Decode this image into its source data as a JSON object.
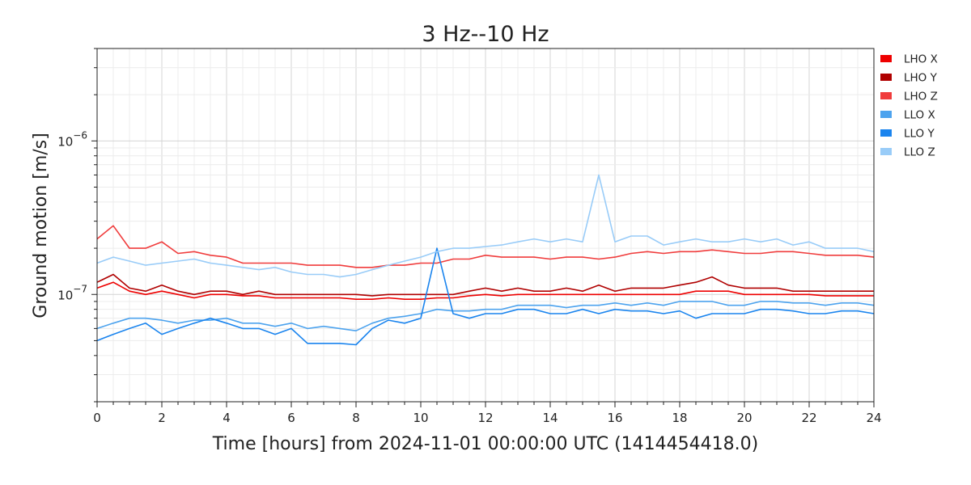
{
  "chart_data": {
    "type": "line",
    "title": "3 Hz--10 Hz",
    "xlabel": "Time [hours] from 2024-11-01 00:00:00 UTC (1414454418.0)",
    "ylabel": "Ground motion [m/s]",
    "xlim": [
      0,
      24
    ],
    "ylim": [
      2e-08,
      4e-06
    ],
    "yscale": "log",
    "grid": true,
    "legend_position": "outside-top-right",
    "x_ticks": [
      0,
      2,
      4,
      6,
      8,
      10,
      12,
      14,
      16,
      18,
      20,
      22,
      24
    ],
    "x_tick_labels": [
      "0",
      "2",
      "4",
      "6",
      "8",
      "10",
      "12",
      "14",
      "16",
      "18",
      "20",
      "22",
      "24"
    ],
    "y_major_ticks": [
      1e-07,
      1e-06
    ],
    "y_tick_labels": [
      {
        "base": "10",
        "exp": "−7",
        "value": 1e-07
      },
      {
        "base": "10",
        "exp": "−6",
        "value": 1e-06
      }
    ],
    "x": [
      0,
      0.5,
      1,
      1.5,
      2,
      2.5,
      3,
      3.5,
      4,
      4.5,
      5,
      5.5,
      6,
      6.5,
      7,
      7.5,
      8,
      8.5,
      9,
      9.5,
      10,
      10.5,
      11,
      11.5,
      12,
      12.5,
      13,
      13.5,
      14,
      14.5,
      15,
      15.5,
      16,
      16.5,
      17,
      17.5,
      18,
      18.5,
      19,
      19.5,
      20,
      20.5,
      21,
      21.5,
      22,
      22.5,
      23,
      23.5,
      24
    ],
    "series": [
      {
        "name": "LHO X",
        "color": "#ee0000",
        "values": [
          1.1e-07,
          1.2e-07,
          1.05e-07,
          1e-07,
          1.05e-07,
          1e-07,
          9.5e-08,
          1e-07,
          1e-07,
          9.8e-08,
          9.8e-08,
          9.5e-08,
          9.5e-08,
          9.5e-08,
          9.5e-08,
          9.5e-08,
          9.3e-08,
          9.3e-08,
          9.5e-08,
          9.3e-08,
          9.3e-08,
          9.5e-08,
          9.5e-08,
          9.8e-08,
          1e-07,
          9.8e-08,
          1e-07,
          1e-07,
          1e-07,
          1e-07,
          1e-07,
          1e-07,
          1e-07,
          1e-07,
          1e-07,
          1e-07,
          1e-07,
          1.05e-07,
          1.05e-07,
          1.05e-07,
          1e-07,
          1e-07,
          1e-07,
          1e-07,
          1e-07,
          9.8e-08,
          9.8e-08,
          9.8e-08,
          9.8e-08
        ]
      },
      {
        "name": "LHO Y",
        "color": "#b00000",
        "values": [
          1.2e-07,
          1.35e-07,
          1.1e-07,
          1.05e-07,
          1.15e-07,
          1.05e-07,
          1e-07,
          1.05e-07,
          1.05e-07,
          1e-07,
          1.05e-07,
          1e-07,
          1e-07,
          1e-07,
          1e-07,
          1e-07,
          1e-07,
          9.8e-08,
          1e-07,
          1e-07,
          1e-07,
          1e-07,
          1e-07,
          1.05e-07,
          1.1e-07,
          1.05e-07,
          1.1e-07,
          1.05e-07,
          1.05e-07,
          1.1e-07,
          1.05e-07,
          1.15e-07,
          1.05e-07,
          1.1e-07,
          1.1e-07,
          1.1e-07,
          1.15e-07,
          1.2e-07,
          1.3e-07,
          1.15e-07,
          1.1e-07,
          1.1e-07,
          1.1e-07,
          1.05e-07,
          1.05e-07,
          1.05e-07,
          1.05e-07,
          1.05e-07,
          1.05e-07
        ]
      },
      {
        "name": "LHO Z",
        "color": "#f03c3c",
        "values": [
          2.3e-07,
          2.8e-07,
          2e-07,
          2e-07,
          2.2e-07,
          1.85e-07,
          1.9e-07,
          1.8e-07,
          1.75e-07,
          1.6e-07,
          1.6e-07,
          1.6e-07,
          1.6e-07,
          1.55e-07,
          1.55e-07,
          1.55e-07,
          1.5e-07,
          1.5e-07,
          1.55e-07,
          1.55e-07,
          1.6e-07,
          1.6e-07,
          1.7e-07,
          1.7e-07,
          1.8e-07,
          1.75e-07,
          1.75e-07,
          1.75e-07,
          1.7e-07,
          1.75e-07,
          1.75e-07,
          1.7e-07,
          1.75e-07,
          1.85e-07,
          1.9e-07,
          1.85e-07,
          1.9e-07,
          1.9e-07,
          1.95e-07,
          1.9e-07,
          1.85e-07,
          1.85e-07,
          1.9e-07,
          1.9e-07,
          1.85e-07,
          1.8e-07,
          1.8e-07,
          1.8e-07,
          1.75e-07
        ]
      },
      {
        "name": "LLO X",
        "color": "#4da3ee",
        "values": [
          6e-08,
          6.5e-08,
          7e-08,
          7e-08,
          6.8e-08,
          6.5e-08,
          6.8e-08,
          6.8e-08,
          7e-08,
          6.5e-08,
          6.5e-08,
          6.2e-08,
          6.5e-08,
          6e-08,
          6.2e-08,
          6e-08,
          5.8e-08,
          6.5e-08,
          7e-08,
          7.2e-08,
          7.5e-08,
          8e-08,
          7.8e-08,
          7.8e-08,
          8e-08,
          8e-08,
          8.5e-08,
          8.5e-08,
          8.5e-08,
          8.2e-08,
          8.5e-08,
          8.5e-08,
          8.8e-08,
          8.5e-08,
          8.8e-08,
          8.5e-08,
          9e-08,
          9e-08,
          9e-08,
          8.5e-08,
          8.5e-08,
          9e-08,
          9e-08,
          8.8e-08,
          8.8e-08,
          8.5e-08,
          8.8e-08,
          8.8e-08,
          8.5e-08
        ]
      },
      {
        "name": "LLO Y",
        "color": "#1a84ee",
        "values": [
          5e-08,
          5.5e-08,
          6e-08,
          6.5e-08,
          5.5e-08,
          6e-08,
          6.5e-08,
          7e-08,
          6.5e-08,
          6e-08,
          6e-08,
          5.5e-08,
          6e-08,
          4.8e-08,
          4.8e-08,
          4.8e-08,
          4.7e-08,
          6e-08,
          6.8e-08,
          6.5e-08,
          7e-08,
          2e-07,
          7.5e-08,
          7e-08,
          7.5e-08,
          7.5e-08,
          8e-08,
          8e-08,
          7.5e-08,
          7.5e-08,
          8e-08,
          7.5e-08,
          8e-08,
          7.8e-08,
          7.8e-08,
          7.5e-08,
          7.8e-08,
          7e-08,
          7.5e-08,
          7.5e-08,
          7.5e-08,
          8e-08,
          8e-08,
          7.8e-08,
          7.5e-08,
          7.5e-08,
          7.8e-08,
          7.8e-08,
          7.5e-08
        ]
      },
      {
        "name": "LLO Z",
        "color": "#99ccf8",
        "values": [
          1.6e-07,
          1.75e-07,
          1.65e-07,
          1.55e-07,
          1.6e-07,
          1.65e-07,
          1.7e-07,
          1.6e-07,
          1.55e-07,
          1.5e-07,
          1.45e-07,
          1.5e-07,
          1.4e-07,
          1.35e-07,
          1.35e-07,
          1.3e-07,
          1.35e-07,
          1.45e-07,
          1.55e-07,
          1.65e-07,
          1.75e-07,
          1.9e-07,
          2e-07,
          2e-07,
          2.05e-07,
          2.1e-07,
          2.2e-07,
          2.3e-07,
          2.2e-07,
          2.3e-07,
          2.2e-07,
          6e-07,
          2.2e-07,
          2.4e-07,
          2.4e-07,
          2.1e-07,
          2.2e-07,
          2.3e-07,
          2.2e-07,
          2.2e-07,
          2.3e-07,
          2.2e-07,
          2.3e-07,
          2.1e-07,
          2.2e-07,
          2e-07,
          2e-07,
          2e-07,
          1.9e-07
        ]
      }
    ]
  }
}
